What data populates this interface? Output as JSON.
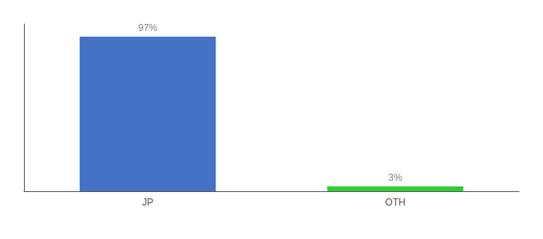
{
  "chart_data": {
    "type": "bar",
    "categories": [
      "JP",
      "OTH"
    ],
    "values": [
      97,
      3
    ],
    "value_labels": [
      "97%",
      "3%"
    ],
    "colors": [
      "#4472C4",
      "#33CC33"
    ],
    "ylim": [
      0,
      105
    ],
    "grid": false,
    "data_labels": true,
    "tick_labels": "x"
  }
}
